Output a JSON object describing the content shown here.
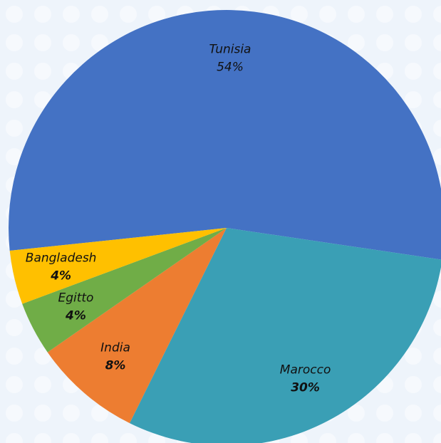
{
  "chart_data": {
    "type": "pie",
    "categories": [
      "Tunisia",
      "Marocco",
      "India",
      "Egitto",
      "Bangladesh"
    ],
    "values": [
      54,
      30,
      8,
      4,
      4
    ],
    "value_labels": [
      "54%",
      "30%",
      "8%",
      "4%",
      "4%"
    ],
    "colors": [
      "#4472c4",
      "#3a9fb5",
      "#ed7d31",
      "#70ad47",
      "#ffc000"
    ]
  }
}
